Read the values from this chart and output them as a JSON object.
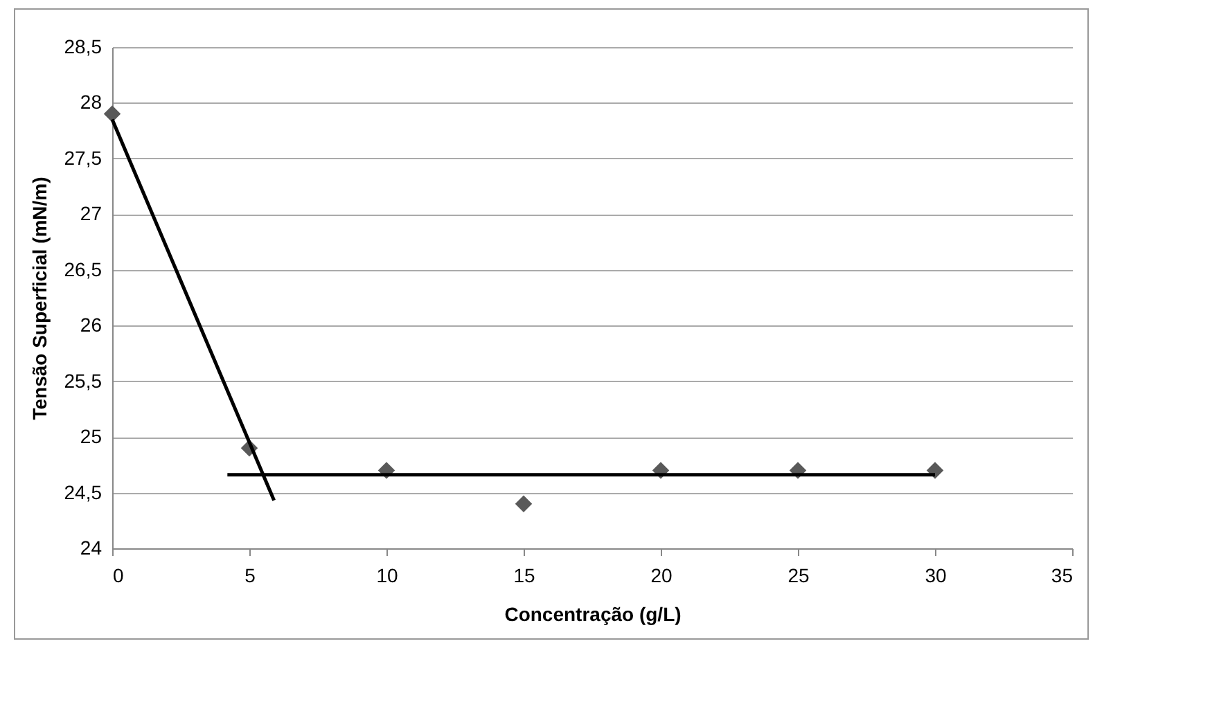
{
  "chart_data": {
    "type": "scatter",
    "xlabel": "Concentração (g/L)",
    "ylabel": "Tensão Superficial (mN/m)",
    "series": [
      {
        "color": "#595959",
        "marker": "diamond",
        "x": [
          0,
          5,
          10,
          15,
          20,
          25,
          30
        ],
        "values": [
          27.9,
          24.9,
          24.7,
          24.4,
          24.7,
          24.7,
          24.7
        ]
      },
      {
        "type": "line",
        "color": "#000000",
        "x": [
          0,
          5.9
        ],
        "values": [
          27.85,
          24.43
        ]
      },
      {
        "type": "line",
        "color": "#000000",
        "x": [
          4.2,
          30
        ],
        "values": [
          24.66,
          24.66
        ]
      }
    ],
    "xlim": [
      0,
      35
    ],
    "xticks": [
      0,
      5,
      10,
      15,
      20,
      25,
      30,
      35
    ],
    "ylim": [
      24,
      28.5
    ],
    "yticks": [
      {
        "value": 24,
        "label": "24"
      },
      {
        "value": 24.5,
        "label": "24,5"
      },
      {
        "value": 25,
        "label": "25"
      },
      {
        "value": 25.5,
        "label": "25,5"
      },
      {
        "value": 26,
        "label": "26"
      },
      {
        "value": 26.5,
        "label": "26,5"
      },
      {
        "value": 27,
        "label": "27"
      },
      {
        "value": 27.5,
        "label": "27,5"
      },
      {
        "value": 28,
        "label": "28"
      },
      {
        "value": 28.5,
        "label": "28,5"
      }
    ],
    "grid": "y"
  }
}
